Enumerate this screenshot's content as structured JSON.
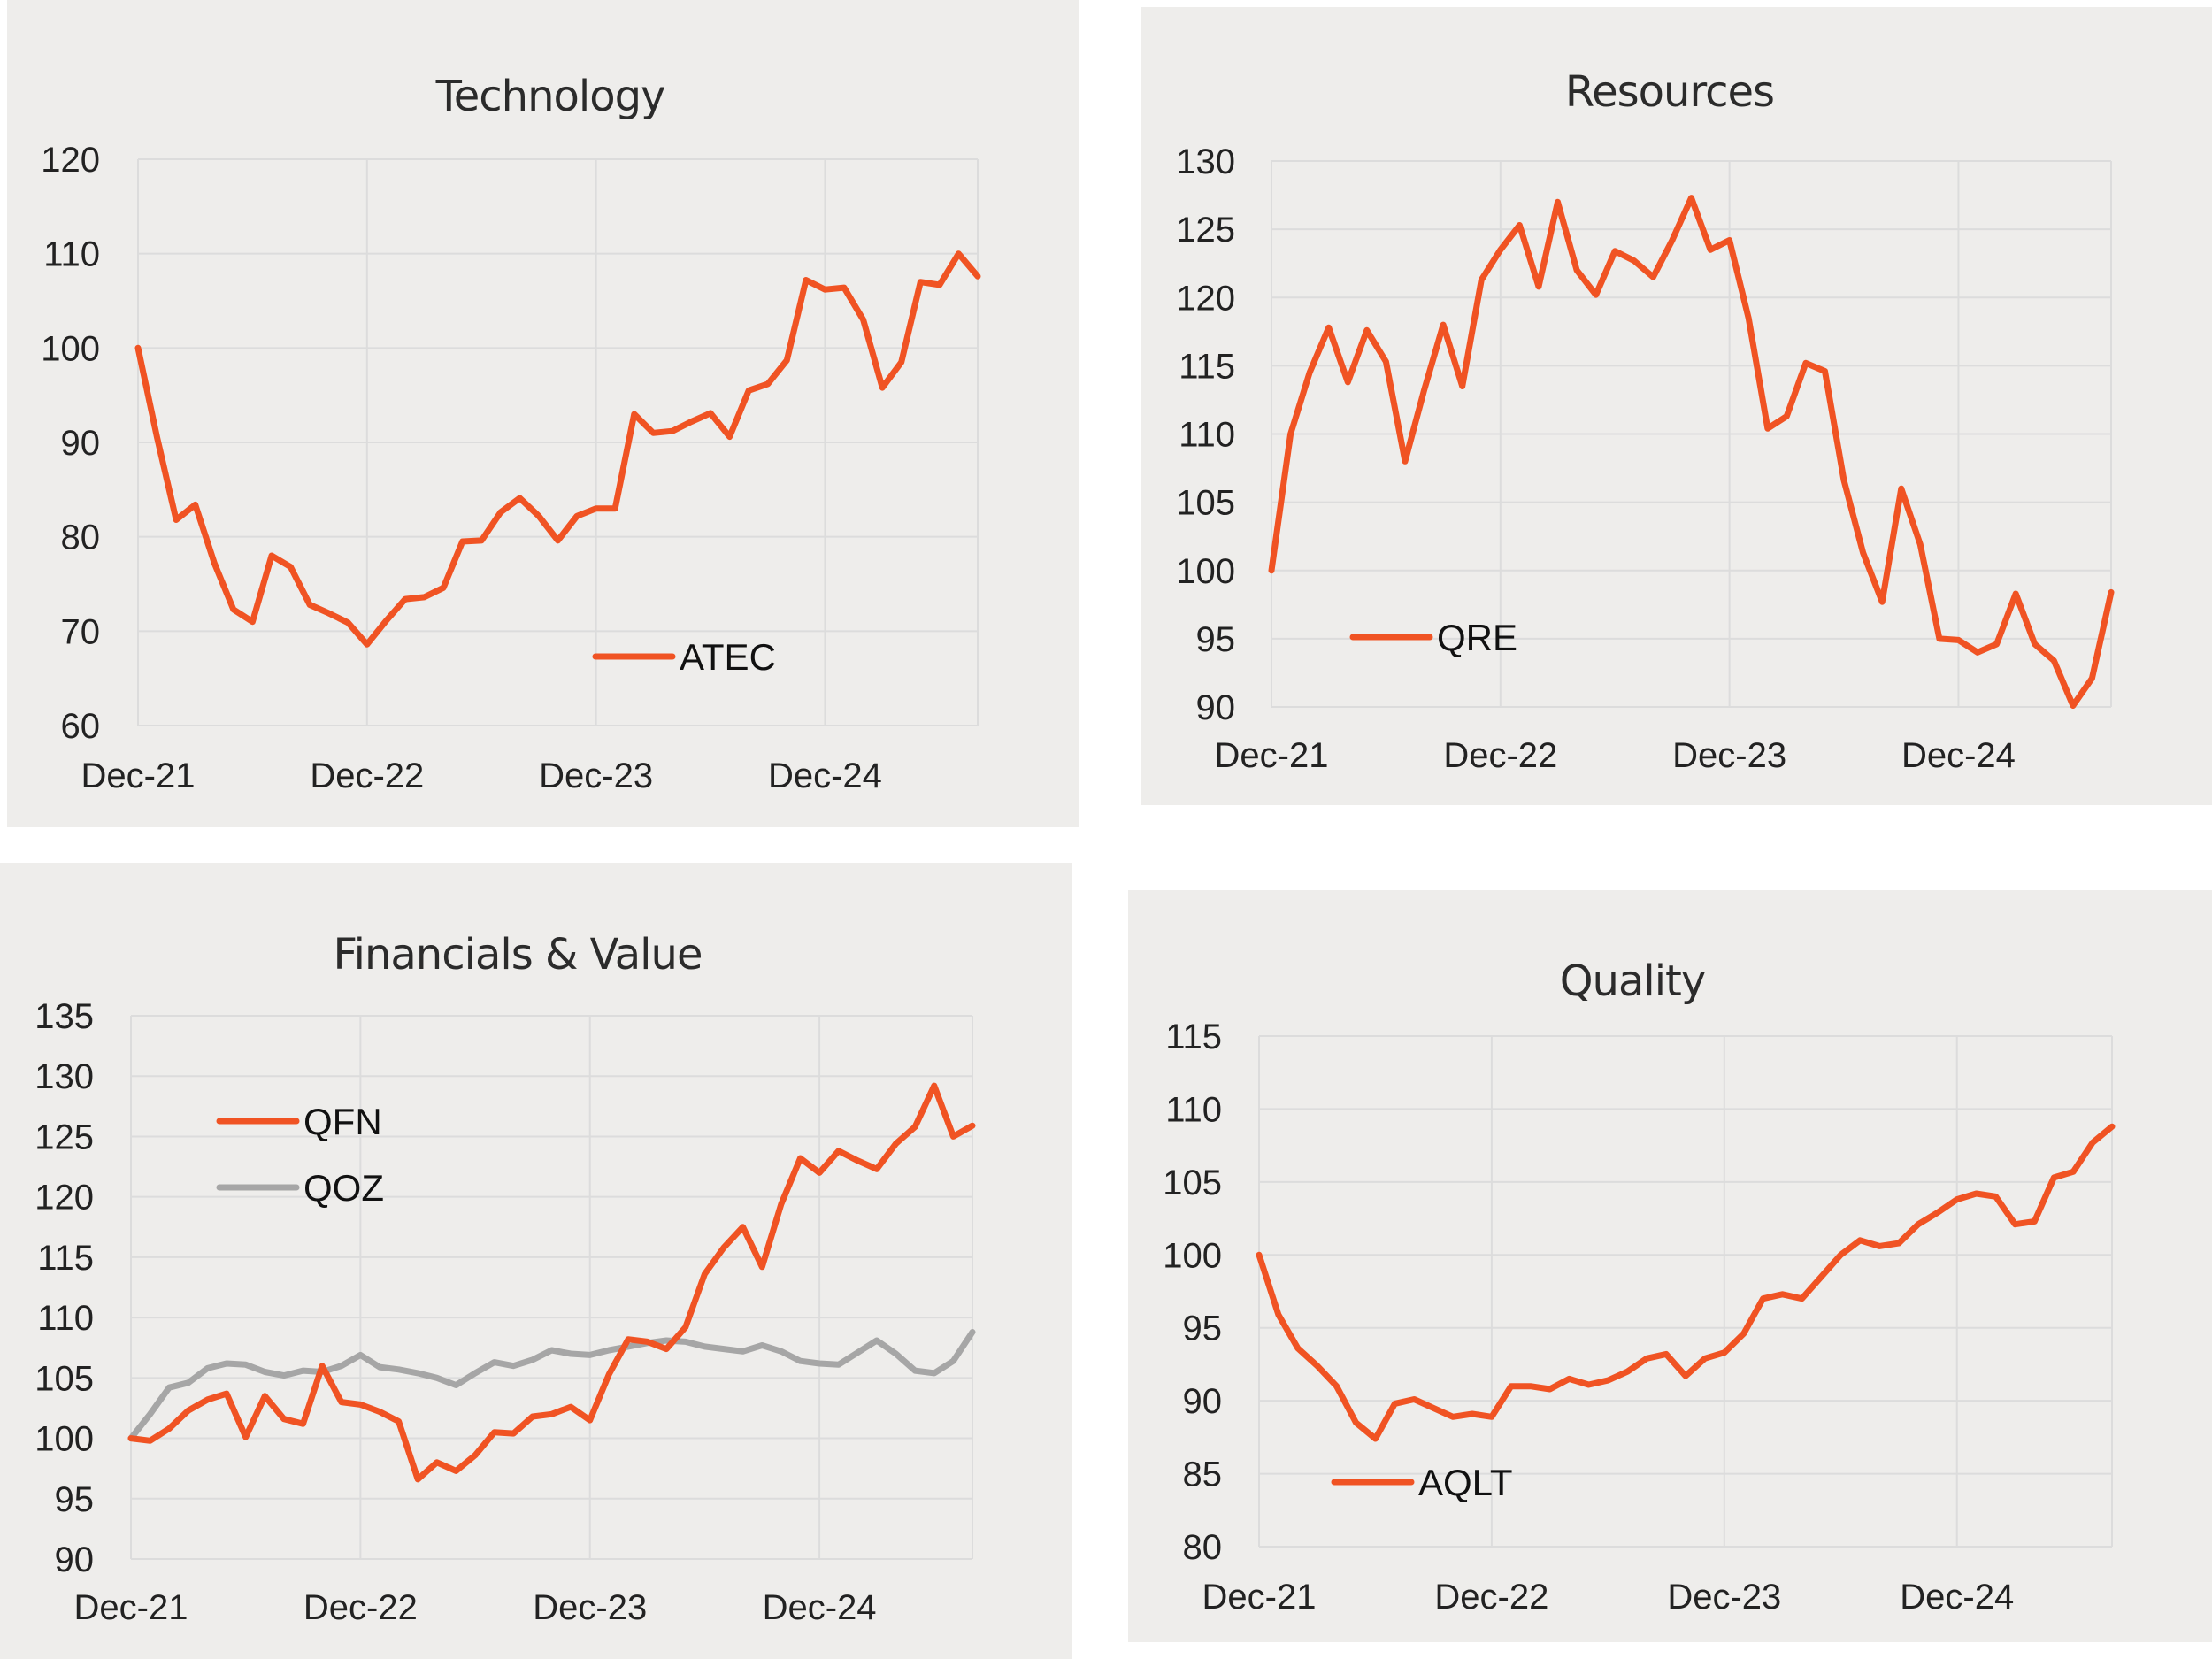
{
  "charts": [
    {
      "title": "Technology",
      "type": "line",
      "x_ticks": [
        "Dec-21",
        "Dec-22",
        "Dec-23",
        "Dec-24"
      ],
      "y_ticks": [
        60,
        70,
        80,
        90,
        100,
        110,
        120
      ],
      "ylim": [
        60,
        120
      ],
      "legend_position": "lower-center",
      "grid": true,
      "series": [
        {
          "name": "ATEC",
          "color": "#f05323",
          "values": [
            100,
            90.5,
            81.8,
            83.4,
            77.2,
            72.3,
            71,
            78,
            76.8,
            72.8,
            71.9,
            70.9,
            68.6,
            71.1,
            73.4,
            73.6,
            74.6,
            79.5,
            79.6,
            82.6,
            84.1,
            82.2,
            79.6,
            82.2,
            83.0,
            83.0,
            93.0,
            91.0,
            91.2,
            92.2,
            93.1,
            90.6,
            95.5,
            96.2,
            98.7,
            107.2,
            106.2,
            106.4,
            103.0,
            95.8,
            98.5,
            107.0,
            106.7,
            110.0,
            107.6
          ]
        }
      ]
    },
    {
      "title": "Resources",
      "type": "line",
      "x_ticks": [
        "Dec-21",
        "Dec-22",
        "Dec-23",
        "Dec-24"
      ],
      "y_ticks": [
        90,
        95,
        100,
        105,
        110,
        115,
        120,
        125,
        130
      ],
      "ylim": [
        90,
        130
      ],
      "legend_position": "lower-left",
      "grid": true,
      "series": [
        {
          "name": "QRE",
          "color": "#f05323",
          "values": [
            100,
            110,
            114.5,
            117.8,
            113.8,
            117.6,
            115.3,
            108.0,
            113.2,
            118.0,
            113.5,
            121.3,
            123.5,
            125.3,
            120.8,
            127.0,
            122.0,
            120.2,
            123.4,
            122.7,
            121.5,
            124.2,
            127.3,
            123.5,
            124.2,
            118.5,
            110.4,
            111.3,
            115.2,
            114.6,
            106.6,
            101.3,
            97.7,
            106.0,
            101.9,
            95.0,
            94.9,
            94.0,
            94.6,
            98.3,
            94.6,
            93.4,
            90.1,
            92.1,
            98.4
          ]
        }
      ]
    },
    {
      "title": "Financials & Value",
      "type": "line",
      "x_ticks": [
        "Dec-21",
        "Dec-22",
        "Dec-23",
        "Dec-24"
      ],
      "y_ticks": [
        90,
        95,
        100,
        105,
        110,
        115,
        120,
        125,
        130,
        135
      ],
      "ylim": [
        90,
        135
      ],
      "legend_position": "upper-left",
      "grid": true,
      "series": [
        {
          "name": "QFN",
          "color": "#f05323",
          "values": [
            100,
            99.8,
            100.8,
            102.3,
            103.2,
            103.7,
            100.1,
            103.5,
            101.6,
            101.2,
            106.0,
            103.0,
            102.8,
            102.2,
            101.4,
            96.6,
            98.0,
            97.3,
            98.6,
            100.5,
            100.4,
            101.8,
            102.0,
            102.6,
            101.5,
            105.3,
            108.2,
            108.0,
            107.4,
            109.2,
            113.6,
            115.8,
            117.5,
            114.2,
            119.4,
            123.2,
            122.0,
            123.8,
            123.0,
            122.3,
            124.4,
            125.8,
            129.2,
            125.0,
            125.9
          ]
        },
        {
          "name": "QOZ",
          "color": "#a6a6a6",
          "values": [
            100,
            102.0,
            104.2,
            104.6,
            105.8,
            106.2,
            106.1,
            105.5,
            105.2,
            105.6,
            105.5,
            106.0,
            106.9,
            105.9,
            105.7,
            105.4,
            105.0,
            104.4,
            105.4,
            106.3,
            106.0,
            106.5,
            107.3,
            107.0,
            106.9,
            107.3,
            107.6,
            107.9,
            108.1,
            108.0,
            107.6,
            107.4,
            107.2,
            107.7,
            107.2,
            106.4,
            106.2,
            106.1,
            107.1,
            108.1,
            107.0,
            105.6,
            105.4,
            106.4,
            108.8
          ]
        }
      ]
    },
    {
      "title": "Quality",
      "type": "line",
      "x_ticks": [
        "Dec-21",
        "Dec-22",
        "Dec-23",
        "Dec-24"
      ],
      "y_ticks": [
        80,
        85,
        90,
        95,
        100,
        105,
        110,
        115
      ],
      "ylim": [
        80,
        115
      ],
      "legend_position": "lower-left",
      "grid": true,
      "series": [
        {
          "name": "AQLT",
          "color": "#f05323",
          "values": [
            100,
            95.9,
            93.6,
            92.4,
            91.0,
            88.5,
            87.4,
            89.8,
            90.1,
            89.5,
            88.9,
            89.1,
            88.9,
            91.0,
            91.0,
            90.8,
            91.5,
            91.1,
            91.4,
            92.0,
            92.9,
            93.2,
            91.7,
            92.9,
            93.3,
            94.6,
            97.0,
            97.3,
            97.0,
            98.5,
            100.0,
            101.0,
            100.6,
            100.8,
            102.1,
            102.9,
            103.8,
            104.2,
            104.0,
            102.1,
            102.3,
            105.3,
            105.7,
            107.7,
            108.8
          ]
        }
      ]
    }
  ]
}
